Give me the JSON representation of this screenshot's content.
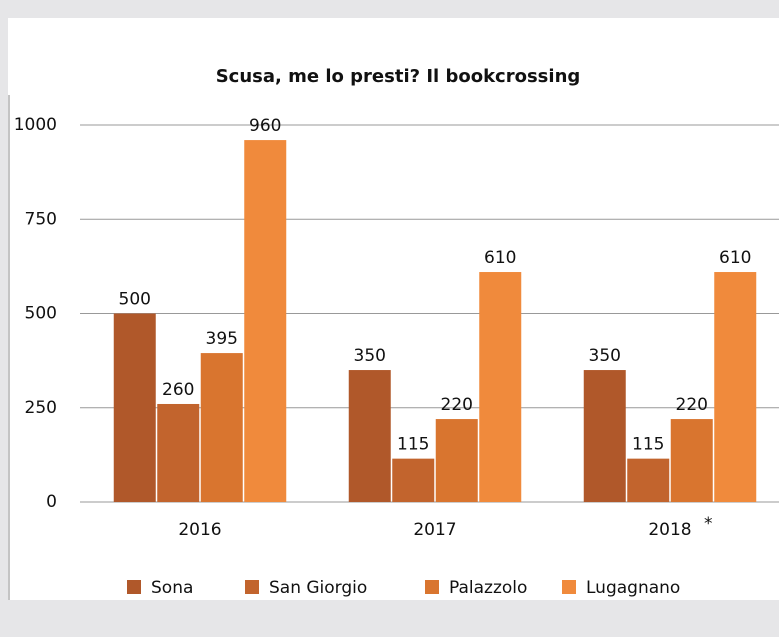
{
  "chart_data": {
    "type": "bar",
    "title": "Scusa, me lo presti? Il bookcrossing",
    "categories": [
      "2016",
      "2017",
      "2018"
    ],
    "annotation": "*",
    "series": [
      {
        "name": "Sona",
        "color": "#b0582a",
        "values": [
          500,
          350,
          350
        ]
      },
      {
        "name": "San Giorgio",
        "color": "#c2642d",
        "values": [
          260,
          115,
          115
        ]
      },
      {
        "name": "Palazzolo",
        "color": "#d9752f",
        "values": [
          395,
          220,
          220
        ]
      },
      {
        "name": "Lugagnano",
        "color": "#f08a3c",
        "values": [
          960,
          610,
          610
        ]
      }
    ],
    "ylim": [
      0,
      1000
    ],
    "yticks": [
      0,
      250,
      500,
      750,
      1000
    ],
    "grid": true,
    "legend": "bottom"
  }
}
